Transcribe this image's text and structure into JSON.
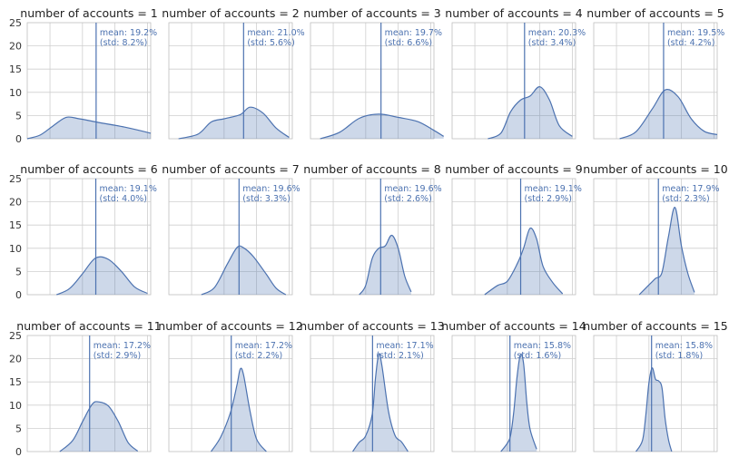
{
  "chart_data": {
    "type": "area",
    "colors": {
      "line": "#4c72b0",
      "fill": "#4c72b0",
      "annotation": "#4c72b0"
    },
    "grid": true,
    "ylim": [
      0,
      25
    ],
    "yticks": [
      "0",
      "5",
      "10",
      "15",
      "20",
      "25"
    ],
    "panels": [
      {
        "title": "number of accounts = 1",
        "annotation": [
          "mean: 19.2%",
          "(std: 8.2%)"
        ],
        "mean": 19.2,
        "std": 8.2,
        "curve": [
          [
            -0.2,
            0.0
          ],
          [
            0.2,
            0.8
          ],
          [
            0.6,
            2.8
          ],
          [
            1.0,
            4.6
          ],
          [
            1.4,
            4.3
          ],
          [
            2.0,
            3.5
          ],
          [
            2.8,
            2.5
          ],
          [
            3.6,
            1.2
          ]
        ]
      },
      {
        "title": "number of accounts = 2",
        "annotation": [
          "mean: 21.0%",
          "(std: 5.6%)"
        ],
        "mean": 21.0,
        "std": 5.6,
        "curve": [
          [
            0.1,
            0.0
          ],
          [
            0.7,
            1.0
          ],
          [
            1.1,
            3.6
          ],
          [
            1.5,
            4.3
          ],
          [
            2.0,
            5.2
          ],
          [
            2.3,
            6.8
          ],
          [
            2.7,
            5.5
          ],
          [
            3.1,
            2.3
          ],
          [
            3.5,
            0.3
          ]
        ]
      },
      {
        "title": "number of accounts = 3",
        "annotation": [
          "mean: 19.7%",
          "(std: 6.6%)"
        ],
        "mean": 19.7,
        "std": 6.6,
        "curve": [
          [
            0.1,
            0.0
          ],
          [
            0.7,
            1.4
          ],
          [
            1.3,
            4.4
          ],
          [
            1.9,
            5.3
          ],
          [
            2.5,
            4.6
          ],
          [
            3.1,
            3.7
          ],
          [
            3.6,
            1.8
          ],
          [
            3.9,
            0.5
          ]
        ]
      },
      {
        "title": "number of accounts = 4",
        "annotation": [
          "mean: 20.3%",
          "(std: 3.4%)"
        ],
        "mean": 20.3,
        "std": 3.4,
        "curve": [
          [
            0.9,
            0.0
          ],
          [
            1.3,
            1.2
          ],
          [
            1.6,
            5.8
          ],
          [
            1.9,
            8.3
          ],
          [
            2.2,
            9.2
          ],
          [
            2.5,
            11.2
          ],
          [
            2.8,
            8.3
          ],
          [
            3.1,
            2.8
          ],
          [
            3.5,
            0.5
          ]
        ]
      },
      {
        "title": "number of accounts = 5",
        "annotation": [
          "mean: 19.5%",
          "(std: 4.2%)"
        ],
        "mean": 19.5,
        "std": 4.2,
        "curve": [
          [
            0.6,
            0.0
          ],
          [
            1.1,
            1.5
          ],
          [
            1.6,
            6.4
          ],
          [
            2.0,
            10.5
          ],
          [
            2.4,
            9.0
          ],
          [
            2.8,
            4.3
          ],
          [
            3.2,
            1.6
          ],
          [
            3.6,
            0.9
          ]
        ]
      },
      {
        "title": "number of accounts = 6",
        "annotation": [
          "mean: 19.1%",
          "(std: 4.0%)"
        ],
        "mean": 19.1,
        "std": 4.0,
        "curve": [
          [
            0.7,
            0.0
          ],
          [
            1.1,
            1.3
          ],
          [
            1.5,
            4.5
          ],
          [
            1.9,
            7.9
          ],
          [
            2.3,
            7.6
          ],
          [
            2.7,
            5.0
          ],
          [
            3.1,
            1.7
          ],
          [
            3.5,
            0.3
          ]
        ]
      },
      {
        "title": "number of accounts = 7",
        "annotation": [
          "mean: 19.6%",
          "(std: 3.3%)"
        ],
        "mean": 19.6,
        "std": 3.3,
        "curve": [
          [
            0.8,
            0.0
          ],
          [
            1.2,
            1.5
          ],
          [
            1.6,
            6.6
          ],
          [
            1.9,
            10.2
          ],
          [
            2.1,
            10.1
          ],
          [
            2.4,
            8.2
          ],
          [
            2.8,
            4.4
          ],
          [
            3.1,
            1.4
          ],
          [
            3.4,
            0.0
          ]
        ]
      },
      {
        "title": "number of accounts = 8",
        "annotation": [
          "mean: 19.6%",
          "(std: 2.6%)"
        ],
        "mean": 19.6,
        "std": 2.6,
        "curve": [
          [
            1.3,
            0.0
          ],
          [
            1.5,
            2.0
          ],
          [
            1.7,
            7.8
          ],
          [
            1.9,
            10.0
          ],
          [
            2.1,
            10.5
          ],
          [
            2.3,
            12.8
          ],
          [
            2.5,
            10.0
          ],
          [
            2.7,
            4.0
          ],
          [
            2.9,
            0.6
          ]
        ]
      },
      {
        "title": "number of accounts = 9",
        "annotation": [
          "mean: 19.1%",
          "(std: 2.9%)"
        ],
        "mean": 19.1,
        "std": 2.9,
        "curve": [
          [
            0.8,
            0.0
          ],
          [
            1.2,
            2.0
          ],
          [
            1.5,
            2.9
          ],
          [
            1.8,
            6.6
          ],
          [
            2.0,
            10.0
          ],
          [
            2.2,
            14.3
          ],
          [
            2.4,
            12.0
          ],
          [
            2.6,
            6.1
          ],
          [
            2.9,
            2.6
          ],
          [
            3.2,
            0.2
          ]
        ]
      },
      {
        "title": "number of accounts = 10",
        "annotation": [
          "mean: 17.9%",
          "(std: 2.3%)"
        ],
        "mean": 17.9,
        "std": 2.3,
        "curve": [
          [
            1.2,
            0.0
          ],
          [
            1.5,
            2.1
          ],
          [
            1.7,
            3.5
          ],
          [
            1.9,
            4.8
          ],
          [
            2.1,
            12.5
          ],
          [
            2.3,
            18.8
          ],
          [
            2.5,
            10.5
          ],
          [
            2.7,
            4.5
          ],
          [
            2.9,
            0.5
          ]
        ]
      },
      {
        "title": "number of accounts = 11",
        "annotation": [
          "mean: 17.2%",
          "(std: 2.9%)"
        ],
        "mean": 17.2,
        "std": 2.9,
        "curve": [
          [
            0.8,
            0.0
          ],
          [
            1.2,
            2.4
          ],
          [
            1.5,
            6.4
          ],
          [
            1.8,
            10.2
          ],
          [
            2.0,
            10.7
          ],
          [
            2.3,
            9.8
          ],
          [
            2.6,
            6.5
          ],
          [
            2.9,
            2.0
          ],
          [
            3.2,
            0.1
          ]
        ]
      },
      {
        "title": "number of accounts = 12",
        "annotation": [
          "mean: 17.2%",
          "(std: 2.2%)"
        ],
        "mean": 17.2,
        "std": 2.2,
        "curve": [
          [
            1.1,
            0.0
          ],
          [
            1.4,
            3.2
          ],
          [
            1.7,
            8.5
          ],
          [
            1.9,
            14.5
          ],
          [
            2.0,
            17.8
          ],
          [
            2.1,
            16.5
          ],
          [
            2.3,
            8.6
          ],
          [
            2.5,
            2.7
          ],
          [
            2.8,
            0.0
          ]
        ]
      },
      {
        "title": "number of accounts = 13",
        "annotation": [
          "mean: 17.1%",
          "(std: 2.1%)"
        ],
        "mean": 17.1,
        "std": 2.1,
        "curve": [
          [
            1.1,
            0.0
          ],
          [
            1.3,
            2.0
          ],
          [
            1.5,
            3.4
          ],
          [
            1.7,
            8.0
          ],
          [
            1.8,
            15.8
          ],
          [
            1.9,
            21.0
          ],
          [
            2.0,
            18.5
          ],
          [
            2.2,
            8.7
          ],
          [
            2.4,
            3.5
          ],
          [
            2.6,
            2.1
          ],
          [
            2.8,
            0.0
          ]
        ]
      },
      {
        "title": "number of accounts = 14",
        "annotation": [
          "mean: 15.8%",
          "(std: 1.6%)"
        ],
        "mean": 15.8,
        "std": 1.6,
        "curve": [
          [
            1.3,
            0.0
          ],
          [
            1.5,
            1.8
          ],
          [
            1.6,
            3.5
          ],
          [
            1.7,
            8.7
          ],
          [
            1.8,
            16.2
          ],
          [
            1.9,
            20.8
          ],
          [
            2.0,
            19.0
          ],
          [
            2.1,
            10.5
          ],
          [
            2.2,
            4.8
          ],
          [
            2.4,
            0.5
          ]
        ]
      },
      {
        "title": "number of accounts = 15",
        "annotation": [
          "mean: 15.8%",
          "(std: 1.8%)"
        ],
        "mean": 15.8,
        "std": 1.8,
        "curve": [
          [
            1.1,
            0.0
          ],
          [
            1.3,
            2.4
          ],
          [
            1.4,
            7.7
          ],
          [
            1.5,
            14.8
          ],
          [
            1.6,
            18.0
          ],
          [
            1.7,
            15.6
          ],
          [
            1.8,
            15.2
          ],
          [
            1.9,
            13.7
          ],
          [
            2.0,
            7.0
          ],
          [
            2.1,
            2.6
          ],
          [
            2.2,
            0.0
          ]
        ]
      }
    ]
  }
}
